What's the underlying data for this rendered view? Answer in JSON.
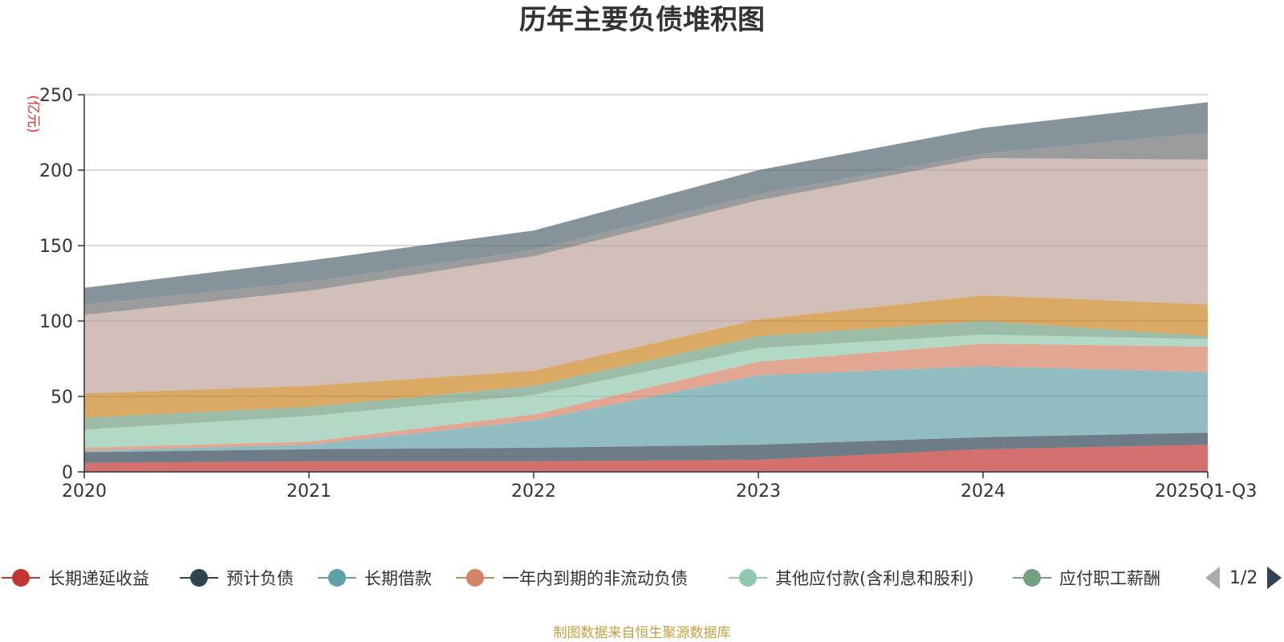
{
  "title": "历年主要负债堆积图",
  "source_note": "制图数据来自恒生聚源数据库",
  "pager": {
    "text": "1/2"
  },
  "chart_data": {
    "type": "area",
    "stacked": true,
    "title": "历年主要负债堆积图",
    "unit": "(亿元)",
    "categories": [
      "2020",
      "2021",
      "2022",
      "2023",
      "2024",
      "2025Q1-Q3"
    ],
    "ylim": [
      0,
      250
    ],
    "yticks": [
      0,
      50,
      100,
      150,
      200,
      250
    ],
    "grid": true,
    "legend_position": "bottom",
    "series": [
      {
        "name": "长期递延收益",
        "color": "#c23531",
        "values": [
          6,
          7,
          7,
          8,
          15,
          18
        ]
      },
      {
        "name": "预计负债",
        "color": "#2f4554",
        "values": [
          7,
          8,
          9,
          10,
          8,
          8
        ]
      },
      {
        "name": "长期借款",
        "color": "#61a0a8",
        "values": [
          1,
          3,
          18,
          46,
          47,
          40
        ]
      },
      {
        "name": "一年内到期的非流动负债",
        "color": "#d48265",
        "values": [
          2,
          2,
          4,
          9,
          15,
          17
        ]
      },
      {
        "name": "其他应付款(含利息和股利)",
        "color": "#91c7ae",
        "values": [
          12,
          17,
          13,
          9,
          6,
          5
        ]
      },
      {
        "name": "应付职工薪酬",
        "color": "#749f83",
        "values": [
          8,
          6,
          6,
          8,
          9,
          2
        ]
      },
      {
        "name": "",
        "color": "#ca8622",
        "values": [
          16,
          14,
          10,
          11,
          17,
          21
        ]
      },
      {
        "name": "",
        "color": "#bda29a",
        "values": [
          52,
          63,
          76,
          79,
          91,
          96
        ]
      },
      {
        "name": "",
        "color": "#6e7074",
        "values": [
          7,
          6,
          4,
          4,
          3,
          18
        ]
      },
      {
        "name": "",
        "color": "#546570",
        "values": [
          11,
          14,
          13,
          16,
          17,
          20
        ]
      }
    ]
  }
}
